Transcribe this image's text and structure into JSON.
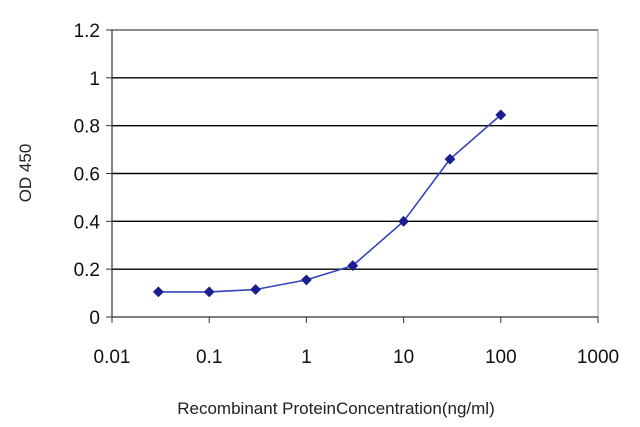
{
  "chart_data": {
    "type": "line",
    "title": "",
    "xlabel": "Recombinant ProteinConcentration(ng/ml)",
    "ylabel": "OD 450",
    "x_scale": "log",
    "xlim": [
      0.01,
      1000
    ],
    "ylim": [
      0,
      1.2
    ],
    "x_ticks": [
      "0.01",
      "0.1",
      "1",
      "10",
      "100",
      "1000"
    ],
    "y_ticks": [
      "0",
      "0.2",
      "0.4",
      "0.6",
      "0.8",
      "1",
      "1.2"
    ],
    "grid": "horizontal",
    "legend": "none",
    "series": [
      {
        "x": [
          0.03,
          0.1,
          0.3,
          1,
          3,
          10,
          30,
          100
        ],
        "y": [
          0.105,
          0.105,
          0.115,
          0.155,
          0.215,
          0.4,
          0.66,
          0.845
        ]
      }
    ],
    "colors": {
      "line": "#3344bb",
      "marker": "#1a1f8f",
      "grid": "#000000",
      "frame": "#999999"
    }
  }
}
